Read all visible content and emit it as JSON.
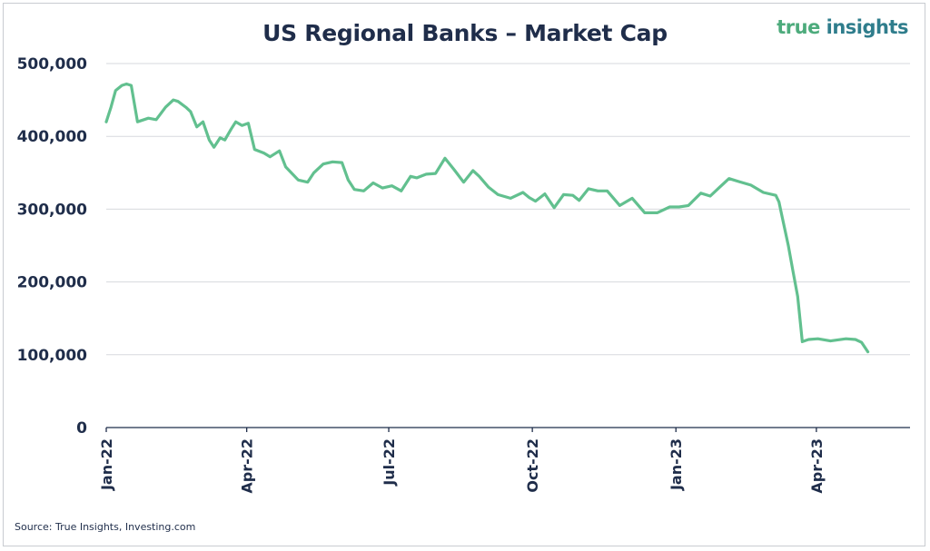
{
  "header": {
    "title": "US Regional Banks – Market Cap"
  },
  "logo": {
    "word1": "true",
    "word2": "insights"
  },
  "footer": {
    "source": "Source: True Insights, Investing.com"
  },
  "colors": {
    "line": "#62c08f",
    "text": "#1f2d4a",
    "grid": "#d7d9dd",
    "axis": "#1f2d4a"
  },
  "chart_data": {
    "type": "line",
    "title": "US Regional Banks – Market Cap",
    "xlabel": "",
    "ylabel": "",
    "ylim": [
      0,
      500000
    ],
    "yticks": [
      0,
      100000,
      200000,
      300000,
      400000,
      500000
    ],
    "ytick_labels": [
      "0",
      "100,000",
      "200,000",
      "300,000",
      "400,000",
      "500,000"
    ],
    "xlim": [
      "2022-01-01",
      "2023-05-31"
    ],
    "xticks": [
      "2022-01-01",
      "2022-04-01",
      "2022-07-01",
      "2022-10-01",
      "2023-01-01",
      "2023-04-01"
    ],
    "xtick_labels": [
      "Jan-22",
      "Apr-22",
      "Jul-22",
      "Oct-22",
      "Jan-23",
      "Apr-23"
    ],
    "grid": true,
    "series": [
      {
        "x": [
          "2022-01-01",
          "2022-01-04",
          "2022-01-07",
          "2022-01-11",
          "2022-01-14",
          "2022-01-17",
          "2022-01-21",
          "2022-01-28",
          "2022-02-02",
          "2022-02-08",
          "2022-02-13",
          "2022-02-16",
          "2022-02-21",
          "2022-02-24",
          "2022-02-28",
          "2022-03-04",
          "2022-03-08",
          "2022-03-11",
          "2022-03-15",
          "2022-03-18",
          "2022-03-22",
          "2022-03-25",
          "2022-03-29",
          "2022-04-02",
          "2022-04-06",
          "2022-04-12",
          "2022-04-16",
          "2022-04-22",
          "2022-04-26",
          "2022-04-30",
          "2022-05-04",
          "2022-05-10",
          "2022-05-14",
          "2022-05-20",
          "2022-05-26",
          "2022-06-01",
          "2022-06-05",
          "2022-06-09",
          "2022-06-15",
          "2022-06-21",
          "2022-06-27",
          "2022-07-03",
          "2022-07-09",
          "2022-07-15",
          "2022-07-19",
          "2022-07-25",
          "2022-07-31",
          "2022-08-06",
          "2022-08-12",
          "2022-08-18",
          "2022-08-24",
          "2022-08-28",
          "2022-09-03",
          "2022-09-09",
          "2022-09-17",
          "2022-09-25",
          "2022-09-29",
          "2022-10-03",
          "2022-10-09",
          "2022-10-15",
          "2022-10-21",
          "2022-10-27",
          "2022-10-31",
          "2022-11-06",
          "2022-11-12",
          "2022-11-18",
          "2022-11-26",
          "2022-12-04",
          "2022-12-12",
          "2022-12-20",
          "2022-12-28",
          "2023-01-03",
          "2023-01-09",
          "2023-01-17",
          "2023-01-23",
          "2023-01-29",
          "2023-02-04",
          "2023-02-10",
          "2023-02-18",
          "2023-02-26",
          "2023-03-06",
          "2023-03-08",
          "2023-03-10",
          "2023-03-14",
          "2023-03-17",
          "2023-03-20",
          "2023-03-23",
          "2023-03-27",
          "2023-04-02",
          "2023-04-10",
          "2023-04-20",
          "2023-04-26",
          "2023-04-30",
          "2023-05-04"
        ],
        "values": [
          420000,
          440000,
          463000,
          470000,
          472000,
          470000,
          420000,
          425000,
          423000,
          440000,
          450000,
          448000,
          440000,
          434000,
          413000,
          420000,
          395000,
          385000,
          398000,
          395000,
          410000,
          420000,
          415000,
          418000,
          382000,
          377000,
          372000,
          380000,
          358000,
          349000,
          340000,
          337000,
          350000,
          362000,
          365000,
          364000,
          340000,
          327000,
          325000,
          336000,
          329000,
          332000,
          325000,
          345000,
          343000,
          348000,
          349000,
          370000,
          354000,
          337000,
          353000,
          345000,
          330000,
          320000,
          315000,
          323000,
          316000,
          311000,
          321000,
          302000,
          320000,
          319000,
          312000,
          328000,
          325000,
          325000,
          305000,
          315000,
          295000,
          295000,
          303000,
          303000,
          305000,
          322000,
          318000,
          330000,
          342000,
          338000,
          333000,
          323000,
          319000,
          310000,
          290000,
          250000,
          215000,
          180000,
          118000,
          121000,
          122000,
          119000,
          122000,
          121000,
          117000,
          104000
        ]
      }
    ]
  }
}
